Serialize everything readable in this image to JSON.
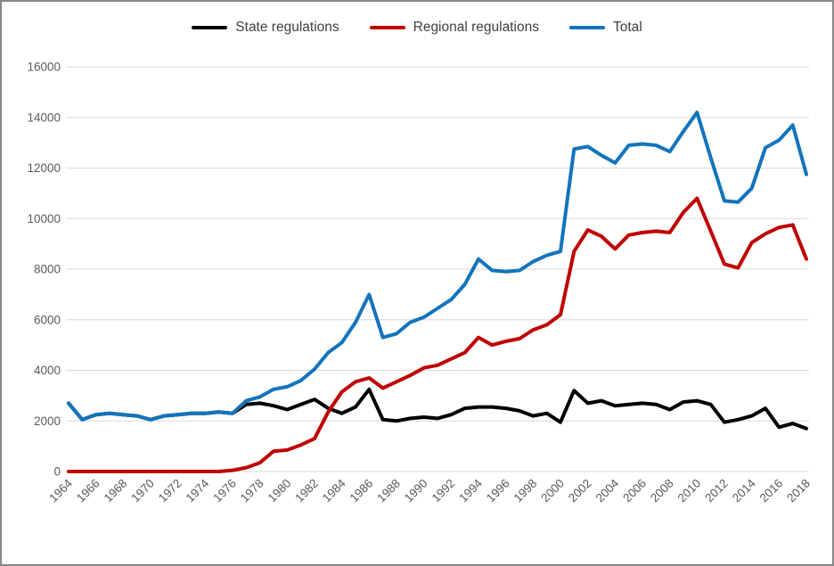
{
  "chart_data": {
    "type": "line",
    "title": "",
    "xlabel": "",
    "ylabel": "",
    "grid": true,
    "legend_position": "top",
    "ylim": [
      0,
      16000
    ],
    "y_ticks": [
      0,
      2000,
      4000,
      6000,
      8000,
      10000,
      12000,
      14000,
      16000
    ],
    "x_range": [
      1964,
      2018
    ],
    "x_tick_labels": [
      "1964",
      "1966",
      "1968",
      "1970",
      "1972",
      "1974",
      "1976",
      "1978",
      "1980",
      "1982",
      "1984",
      "1986",
      "1988",
      "1990",
      "1992",
      "1994",
      "1996",
      "1998",
      "2000",
      "2002",
      "2004",
      "2006",
      "2008",
      "2010",
      "2012",
      "2014",
      "2016",
      "2018"
    ],
    "years": [
      1964,
      1965,
      1966,
      1967,
      1968,
      1969,
      1970,
      1971,
      1972,
      1973,
      1974,
      1975,
      1976,
      1977,
      1978,
      1979,
      1980,
      1981,
      1982,
      1983,
      1984,
      1985,
      1986,
      1987,
      1988,
      1989,
      1990,
      1991,
      1992,
      1993,
      1994,
      1995,
      1996,
      1997,
      1998,
      1999,
      2000,
      2001,
      2002,
      2003,
      2004,
      2005,
      2006,
      2007,
      2008,
      2009,
      2010,
      2011,
      2012,
      2013,
      2014,
      2015,
      2016,
      2017,
      2018
    ],
    "series": [
      {
        "name": "State regulations",
        "color": "#000000",
        "values": [
          2700,
          2050,
          2250,
          2300,
          2250,
          2200,
          2050,
          2200,
          2250,
          2300,
          2300,
          2350,
          2300,
          2650,
          2700,
          2600,
          2450,
          2650,
          2850,
          2500,
          2300,
          2550,
          3250,
          2050,
          2000,
          2100,
          2150,
          2100,
          2250,
          2500,
          2550,
          2550,
          2500,
          2400,
          2200,
          2300,
          1950,
          3200,
          2700,
          2800,
          2600,
          2650,
          2700,
          2650,
          2450,
          2750,
          2800,
          2650,
          1950,
          2050,
          2200,
          2500,
          1750,
          1900,
          1700
        ]
      },
      {
        "name": "Regional regulations",
        "color": "#c00000",
        "values": [
          0,
          0,
          0,
          0,
          0,
          0,
          0,
          0,
          0,
          0,
          0,
          0,
          50,
          150,
          350,
          800,
          850,
          1050,
          1300,
          2350,
          3150,
          3550,
          3700,
          3300,
          3550,
          3800,
          4100,
          4200,
          4450,
          4700,
          5300,
          5000,
          5150,
          5250,
          5600,
          5800,
          6200,
          8700,
          9550,
          9300,
          8800,
          9350,
          9450,
          9500,
          9450,
          10250,
          10800,
          9500,
          8200,
          8050,
          9050,
          9400,
          9650,
          9750,
          8400
        ]
      },
      {
        "name": "Total",
        "color": "#1274bc",
        "values": [
          2700,
          2050,
          2250,
          2300,
          2250,
          2200,
          2050,
          2200,
          2250,
          2300,
          2300,
          2350,
          2300,
          2800,
          2950,
          3250,
          3350,
          3600,
          4050,
          4700,
          5100,
          5900,
          7000,
          5300,
          5450,
          5900,
          6100,
          6450,
          6800,
          7400,
          8400,
          7950,
          7900,
          7950,
          8300,
          8550,
          8700,
          12750,
          12850,
          12500,
          12200,
          12900,
          12950,
          12900,
          12650,
          13450,
          14200,
          12400,
          10700,
          10650,
          11200,
          12800,
          13100,
          13700,
          11750
        ]
      }
    ]
  },
  "styles": {
    "background": "#ffffff",
    "frame_border": "#888888",
    "gridline_color": "#d9d9d9",
    "axis_text_color": "#595959",
    "legend_text_color": "#3f3f3f"
  }
}
